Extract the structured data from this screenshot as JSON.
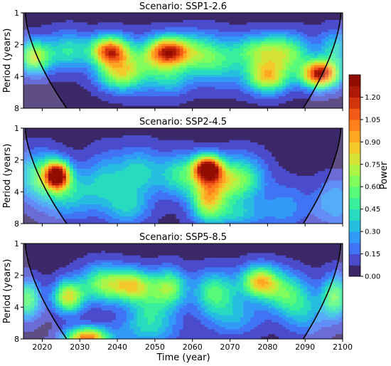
{
  "chart_data": {
    "type": "heatmap",
    "description_type": "wavelet power spectrum (filled contour) with cone of influence",
    "shared_x": {
      "label": "Time (year)",
      "range": [
        2015,
        2100
      ],
      "ticks": [
        2020,
        2030,
        2040,
        2050,
        2060,
        2070,
        2080,
        2090,
        2100
      ]
    },
    "shared_y": {
      "label": "Period (years)",
      "scale": "log2",
      "range": [
        1,
        8
      ],
      "inverted": true,
      "ticks": [
        1,
        2,
        4,
        8
      ]
    },
    "colorbar": {
      "label": "Power",
      "range": [
        0,
        1.35
      ],
      "ticks": [
        "0.00",
        "0.15",
        "0.30",
        "0.45",
        "0.60",
        "0.75",
        "0.90",
        "1.05",
        "1.20"
      ],
      "colormap": "turbo"
    },
    "panels": [
      {
        "title": "Scenario: SSP1-2.6",
        "background_power": 0.05,
        "hotspots": [
          {
            "year": 2018,
            "period": 2.6,
            "power": 0.7,
            "sx": 3,
            "sp": 0.35
          },
          {
            "year": 2027,
            "period": 2.3,
            "power": 0.4,
            "sx": 4,
            "sp": 0.4
          },
          {
            "year": 2038,
            "period": 2.3,
            "power": 1.05,
            "sx": 3.5,
            "sp": 0.32
          },
          {
            "year": 2040,
            "period": 3.8,
            "power": 0.55,
            "sx": 4,
            "sp": 0.35
          },
          {
            "year": 2045,
            "period": 3.2,
            "power": 0.35,
            "sx": 4,
            "sp": 0.5
          },
          {
            "year": 2051,
            "period": 2.4,
            "power": 0.5,
            "sx": 3,
            "sp": 0.35
          },
          {
            "year": 2055,
            "period": 2.3,
            "power": 0.85,
            "sx": 3.5,
            "sp": 0.32
          },
          {
            "year": 2054,
            "period": 4.0,
            "power": 0.35,
            "sx": 4,
            "sp": 0.4
          },
          {
            "year": 2062,
            "period": 2.5,
            "power": 0.45,
            "sx": 4,
            "sp": 0.45
          },
          {
            "year": 2068,
            "period": 3.0,
            "power": 0.3,
            "sx": 4,
            "sp": 0.5
          },
          {
            "year": 2078,
            "period": 2.3,
            "power": 0.55,
            "sx": 5,
            "sp": 0.35
          },
          {
            "year": 2080,
            "period": 4.0,
            "power": 0.8,
            "sx": 4,
            "sp": 0.35
          },
          {
            "year": 2086,
            "period": 2.4,
            "power": 0.45,
            "sx": 4,
            "sp": 0.4
          },
          {
            "year": 2094,
            "period": 3.8,
            "power": 1.2,
            "sx": 3.5,
            "sp": 0.3
          },
          {
            "year": 2098,
            "period": 2.2,
            "power": 0.35,
            "sx": 3,
            "sp": 0.4
          }
        ]
      },
      {
        "title": "Scenario: SSP2-4.5",
        "background_power": 0.05,
        "hotspots": [
          {
            "year": 2019,
            "period": 2.8,
            "power": 0.45,
            "sx": 4,
            "sp": 0.5
          },
          {
            "year": 2024,
            "period": 2.8,
            "power": 1.2,
            "sx": 2.3,
            "sp": 0.3
          },
          {
            "year": 2027,
            "period": 4.2,
            "power": 0.35,
            "sx": 5,
            "sp": 0.5
          },
          {
            "year": 2037,
            "period": 3.2,
            "power": 0.3,
            "sx": 4,
            "sp": 0.6
          },
          {
            "year": 2046,
            "period": 2.6,
            "power": 0.35,
            "sx": 4,
            "sp": 0.5
          },
          {
            "year": 2043,
            "period": 5.5,
            "power": 0.3,
            "sx": 4,
            "sp": 0.4
          },
          {
            "year": 2057,
            "period": 2.8,
            "power": 0.45,
            "sx": 4,
            "sp": 0.45
          },
          {
            "year": 2064,
            "period": 2.4,
            "power": 1.2,
            "sx": 2.6,
            "sp": 0.28
          },
          {
            "year": 2064,
            "period": 4.6,
            "power": 0.65,
            "sx": 3,
            "sp": 0.45
          },
          {
            "year": 2068,
            "period": 3.2,
            "power": 0.5,
            "sx": 4,
            "sp": 0.45
          },
          {
            "year": 2074,
            "period": 3.0,
            "power": 0.4,
            "sx": 4,
            "sp": 0.5
          },
          {
            "year": 2071,
            "period": 6.5,
            "power": 0.3,
            "sx": 6,
            "sp": 0.3
          },
          {
            "year": 2085,
            "period": 5.5,
            "power": 0.2,
            "sx": 4,
            "sp": 0.5
          },
          {
            "year": 2098,
            "period": 5.0,
            "power": 0.25,
            "sx": 4,
            "sp": 0.5
          }
        ]
      },
      {
        "title": "Scenario: SSP5-8.5",
        "background_power": 0.05,
        "hotspots": [
          {
            "year": 2016,
            "period": 3.4,
            "power": 0.55,
            "sx": 2.5,
            "sp": 0.4
          },
          {
            "year": 2027,
            "period": 3.2,
            "power": 0.75,
            "sx": 2.8,
            "sp": 0.35
          },
          {
            "year": 2036,
            "period": 2.4,
            "power": 0.55,
            "sx": 4,
            "sp": 0.4
          },
          {
            "year": 2044,
            "period": 2.5,
            "power": 0.7,
            "sx": 4,
            "sp": 0.35
          },
          {
            "year": 2049,
            "period": 4.0,
            "power": 0.3,
            "sx": 4,
            "sp": 0.5
          },
          {
            "year": 2054,
            "period": 2.6,
            "power": 0.55,
            "sx": 3,
            "sp": 0.4
          },
          {
            "year": 2048,
            "period": 6.5,
            "power": 0.25,
            "sx": 6,
            "sp": 0.4
          },
          {
            "year": 2032,
            "period": 8.0,
            "power": 1.0,
            "sx": 4,
            "sp": 0.25
          },
          {
            "year": 2066,
            "period": 2.9,
            "power": 0.5,
            "sx": 4,
            "sp": 0.45
          },
          {
            "year": 2071,
            "period": 5.0,
            "power": 0.25,
            "sx": 5,
            "sp": 0.4
          },
          {
            "year": 2078,
            "period": 2.3,
            "power": 0.8,
            "sx": 3.5,
            "sp": 0.35
          },
          {
            "year": 2085,
            "period": 3.0,
            "power": 0.45,
            "sx": 4,
            "sp": 0.45
          },
          {
            "year": 2090,
            "period": 4.5,
            "power": 0.25,
            "sx": 4,
            "sp": 0.5
          },
          {
            "year": 2098,
            "period": 3.2,
            "power": 0.55,
            "sx": 2.5,
            "sp": 0.45
          }
        ]
      }
    ],
    "cone_of_influence": {
      "left_start_year": 2015.5,
      "left_end_year": 2026.5,
      "right_start_year": 2099.5,
      "right_end_year": 2089.5
    }
  }
}
